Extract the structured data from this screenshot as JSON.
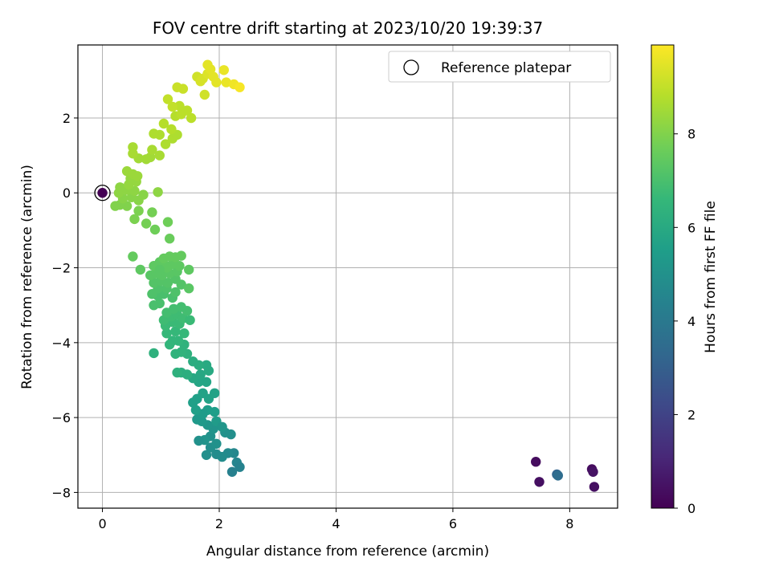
{
  "chart_data": {
    "type": "scatter",
    "title": "FOV centre drift starting at 2023/10/20 19:39:37",
    "xlabel": "Angular distance from reference (arcmin)",
    "ylabel": "Rotation from reference (arcmin)",
    "xlim": [
      -0.42,
      8.82
    ],
    "ylim": [
      -8.42,
      3.95
    ],
    "xticks": [
      0,
      2,
      4,
      6,
      8
    ],
    "yticks": [
      -8,
      -6,
      -4,
      -2,
      0,
      2
    ],
    "grid": true,
    "legend": {
      "position": "top-right",
      "entries": [
        "Reference platepar"
      ]
    },
    "colorbar": {
      "label": "Hours from first FF file",
      "colormap": "viridis",
      "range": [
        0,
        9.9
      ],
      "ticks": [
        0,
        2,
        4,
        6,
        8
      ]
    },
    "reference_point": {
      "x": 0,
      "y": 0
    },
    "points": [
      {
        "x": 7.42,
        "y": -7.18,
        "c": 0.3
      },
      {
        "x": 7.48,
        "y": -7.72,
        "c": 0.4
      },
      {
        "x": 7.78,
        "y": -7.52,
        "c": 3.2
      },
      {
        "x": 7.8,
        "y": -7.55,
        "c": 3.5
      },
      {
        "x": 8.38,
        "y": -7.38,
        "c": 0.3
      },
      {
        "x": 8.4,
        "y": -7.45,
        "c": 0.5
      },
      {
        "x": 8.42,
        "y": -7.85,
        "c": 0.4
      },
      {
        "x": 2.22,
        "y": -7.45,
        "c": 4.3
      },
      {
        "x": 2.3,
        "y": -7.2,
        "c": 4.5
      },
      {
        "x": 2.35,
        "y": -7.32,
        "c": 4.4
      },
      {
        "x": 2.25,
        "y": -6.95,
        "c": 4.6
      },
      {
        "x": 2.15,
        "y": -6.95,
        "c": 4.7
      },
      {
        "x": 2.05,
        "y": -7.05,
        "c": 4.8
      },
      {
        "x": 1.95,
        "y": -6.98,
        "c": 4.8
      },
      {
        "x": 1.85,
        "y": -6.8,
        "c": 4.9
      },
      {
        "x": 1.78,
        "y": -7.0,
        "c": 4.9
      },
      {
        "x": 1.95,
        "y": -6.7,
        "c": 5.0
      },
      {
        "x": 1.85,
        "y": -6.5,
        "c": 5.0
      },
      {
        "x": 1.75,
        "y": -6.6,
        "c": 5.1
      },
      {
        "x": 1.65,
        "y": -6.62,
        "c": 5.0
      },
      {
        "x": 2.2,
        "y": -6.45,
        "c": 4.9
      },
      {
        "x": 2.1,
        "y": -6.4,
        "c": 5.0
      },
      {
        "x": 1.9,
        "y": -6.3,
        "c": 5.1
      },
      {
        "x": 1.8,
        "y": -6.2,
        "c": 5.2
      },
      {
        "x": 1.7,
        "y": -6.1,
        "c": 5.3
      },
      {
        "x": 1.62,
        "y": -6.05,
        "c": 5.3
      },
      {
        "x": 1.95,
        "y": -6.1,
        "c": 5.4
      },
      {
        "x": 2.05,
        "y": -6.25,
        "c": 5.2
      },
      {
        "x": 1.92,
        "y": -5.85,
        "c": 5.5
      },
      {
        "x": 1.8,
        "y": -5.8,
        "c": 5.5
      },
      {
        "x": 1.72,
        "y": -5.9,
        "c": 5.4
      },
      {
        "x": 1.6,
        "y": -5.8,
        "c": 5.6
      },
      {
        "x": 1.55,
        "y": -5.6,
        "c": 5.6
      },
      {
        "x": 1.62,
        "y": -5.5,
        "c": 5.6
      },
      {
        "x": 1.72,
        "y": -5.35,
        "c": 5.7
      },
      {
        "x": 1.82,
        "y": -5.5,
        "c": 5.7
      },
      {
        "x": 1.92,
        "y": -5.35,
        "c": 5.7
      },
      {
        "x": 1.78,
        "y": -5.05,
        "c": 5.8
      },
      {
        "x": 1.65,
        "y": -5.05,
        "c": 5.8
      },
      {
        "x": 1.55,
        "y": -4.95,
        "c": 5.9
      },
      {
        "x": 1.68,
        "y": -4.85,
        "c": 5.9
      },
      {
        "x": 1.82,
        "y": -4.75,
        "c": 6.0
      },
      {
        "x": 1.78,
        "y": -4.6,
        "c": 6.0
      },
      {
        "x": 1.65,
        "y": -4.6,
        "c": 6.1
      },
      {
        "x": 1.55,
        "y": -4.5,
        "c": 6.1
      },
      {
        "x": 1.45,
        "y": -4.85,
        "c": 6.2
      },
      {
        "x": 1.35,
        "y": -4.8,
        "c": 6.2
      },
      {
        "x": 1.28,
        "y": -4.8,
        "c": 6.3
      },
      {
        "x": 1.45,
        "y": -4.3,
        "c": 6.3
      },
      {
        "x": 1.35,
        "y": -4.25,
        "c": 6.4
      },
      {
        "x": 1.25,
        "y": -4.3,
        "c": 6.4
      },
      {
        "x": 1.4,
        "y": -4.05,
        "c": 6.4
      },
      {
        "x": 1.3,
        "y": -3.95,
        "c": 6.5
      },
      {
        "x": 1.2,
        "y": -3.95,
        "c": 6.5
      },
      {
        "x": 1.15,
        "y": -4.05,
        "c": 6.5
      },
      {
        "x": 1.1,
        "y": -3.75,
        "c": 6.6
      },
      {
        "x": 1.25,
        "y": -3.7,
        "c": 6.6
      },
      {
        "x": 1.4,
        "y": -3.75,
        "c": 6.6
      },
      {
        "x": 1.32,
        "y": -3.5,
        "c": 6.7
      },
      {
        "x": 1.2,
        "y": -3.45,
        "c": 6.7
      },
      {
        "x": 1.08,
        "y": -3.55,
        "c": 6.7
      },
      {
        "x": 1.05,
        "y": -3.4,
        "c": 6.8
      },
      {
        "x": 1.18,
        "y": -3.3,
        "c": 6.8
      },
      {
        "x": 1.28,
        "y": -3.25,
        "c": 6.8
      },
      {
        "x": 1.38,
        "y": -3.35,
        "c": 6.8
      },
      {
        "x": 1.5,
        "y": -3.4,
        "c": 6.7
      },
      {
        "x": 1.45,
        "y": -3.15,
        "c": 6.9
      },
      {
        "x": 1.35,
        "y": -3.05,
        "c": 6.9
      },
      {
        "x": 1.22,
        "y": -3.1,
        "c": 6.9
      },
      {
        "x": 1.1,
        "y": -3.2,
        "c": 6.9
      },
      {
        "x": 0.98,
        "y": -2.95,
        "c": 7.0
      },
      {
        "x": 0.88,
        "y": -3.0,
        "c": 7.0
      },
      {
        "x": 0.95,
        "y": -2.75,
        "c": 7.0
      },
      {
        "x": 1.05,
        "y": -2.7,
        "c": 7.0
      },
      {
        "x": 1.2,
        "y": -2.8,
        "c": 7.0
      },
      {
        "x": 1.25,
        "y": -2.65,
        "c": 7.1
      },
      {
        "x": 1.1,
        "y": -2.55,
        "c": 7.1
      },
      {
        "x": 0.95,
        "y": -2.55,
        "c": 7.1
      },
      {
        "x": 0.85,
        "y": -2.7,
        "c": 7.1
      },
      {
        "x": 0.88,
        "y": -2.4,
        "c": 7.2
      },
      {
        "x": 1.0,
        "y": -2.35,
        "c": 7.2
      },
      {
        "x": 1.12,
        "y": -2.4,
        "c": 7.2
      },
      {
        "x": 1.25,
        "y": -2.3,
        "c": 7.2
      },
      {
        "x": 1.35,
        "y": -2.45,
        "c": 7.2
      },
      {
        "x": 1.48,
        "y": -2.55,
        "c": 7.3
      },
      {
        "x": 0.82,
        "y": -2.2,
        "c": 7.3
      },
      {
        "x": 0.92,
        "y": -2.15,
        "c": 7.3
      },
      {
        "x": 1.02,
        "y": -2.2,
        "c": 7.3
      },
      {
        "x": 1.15,
        "y": -2.15,
        "c": 7.3
      },
      {
        "x": 1.28,
        "y": -2.1,
        "c": 7.3
      },
      {
        "x": 1.32,
        "y": -1.95,
        "c": 7.4
      },
      {
        "x": 1.2,
        "y": -1.9,
        "c": 7.4
      },
      {
        "x": 1.08,
        "y": -1.95,
        "c": 7.4
      },
      {
        "x": 0.98,
        "y": -1.85,
        "c": 7.4
      },
      {
        "x": 0.88,
        "y": -1.95,
        "c": 7.4
      },
      {
        "x": 1.05,
        "y": -1.75,
        "c": 7.5
      },
      {
        "x": 1.15,
        "y": -1.7,
        "c": 7.5
      },
      {
        "x": 1.25,
        "y": -1.72,
        "c": 7.5
      },
      {
        "x": 1.35,
        "y": -1.68,
        "c": 7.5
      },
      {
        "x": 1.48,
        "y": -2.05,
        "c": 7.4
      },
      {
        "x": 1.1,
        "y": -2.0,
        "c": 7.4
      },
      {
        "x": 0.98,
        "y": -2.05,
        "c": 7.3
      },
      {
        "x": 0.52,
        "y": -1.7,
        "c": 7.5
      },
      {
        "x": 0.65,
        "y": -2.05,
        "c": 7.4
      },
      {
        "x": 0.88,
        "y": -4.28,
        "c": 6.3
      },
      {
        "x": 1.15,
        "y": -1.22,
        "c": 7.6
      },
      {
        "x": 1.12,
        "y": -0.78,
        "c": 7.7
      },
      {
        "x": 0.9,
        "y": -0.98,
        "c": 7.7
      },
      {
        "x": 0.75,
        "y": -0.82,
        "c": 7.8
      },
      {
        "x": 0.85,
        "y": -0.52,
        "c": 7.8
      },
      {
        "x": 0.62,
        "y": -0.48,
        "c": 7.9
      },
      {
        "x": 0.55,
        "y": -0.7,
        "c": 7.9
      },
      {
        "x": 0.42,
        "y": -0.35,
        "c": 8.0
      },
      {
        "x": 0.3,
        "y": -0.32,
        "c": 8.0
      },
      {
        "x": 0.22,
        "y": -0.35,
        "c": 8.0
      },
      {
        "x": 0.35,
        "y": -0.15,
        "c": 8.1
      },
      {
        "x": 0.5,
        "y": -0.12,
        "c": 8.1
      },
      {
        "x": 0.62,
        "y": -0.2,
        "c": 8.1
      },
      {
        "x": 0.7,
        "y": -0.05,
        "c": 8.1
      },
      {
        "x": 0.55,
        "y": 0.05,
        "c": 8.2
      },
      {
        "x": 0.42,
        "y": 0.08,
        "c": 8.2
      },
      {
        "x": 0.28,
        "y": 0.0,
        "c": 8.2
      },
      {
        "x": 0.3,
        "y": 0.15,
        "c": 8.2
      },
      {
        "x": 0.45,
        "y": 0.22,
        "c": 8.3
      },
      {
        "x": 0.58,
        "y": 0.3,
        "c": 8.3
      },
      {
        "x": 0.95,
        "y": 0.02,
        "c": 8.2
      },
      {
        "x": 0.48,
        "y": 0.38,
        "c": 8.3
      },
      {
        "x": 0.42,
        "y": 0.58,
        "c": 8.4
      },
      {
        "x": 0.52,
        "y": 0.5,
        "c": 8.4
      },
      {
        "x": 0.6,
        "y": 0.45,
        "c": 8.4
      },
      {
        "x": 0.75,
        "y": 0.9,
        "c": 8.5
      },
      {
        "x": 0.82,
        "y": 0.95,
        "c": 8.5
      },
      {
        "x": 0.62,
        "y": 0.92,
        "c": 8.5
      },
      {
        "x": 0.52,
        "y": 1.05,
        "c": 8.6
      },
      {
        "x": 0.52,
        "y": 1.22,
        "c": 8.6
      },
      {
        "x": 0.85,
        "y": 1.15,
        "c": 8.6
      },
      {
        "x": 0.98,
        "y": 1.0,
        "c": 8.6
      },
      {
        "x": 1.08,
        "y": 1.3,
        "c": 8.7
      },
      {
        "x": 1.2,
        "y": 1.45,
        "c": 8.7
      },
      {
        "x": 1.28,
        "y": 1.55,
        "c": 8.7
      },
      {
        "x": 0.98,
        "y": 1.55,
        "c": 8.7
      },
      {
        "x": 0.88,
        "y": 1.58,
        "c": 8.7
      },
      {
        "x": 1.05,
        "y": 1.85,
        "c": 8.8
      },
      {
        "x": 1.18,
        "y": 1.7,
        "c": 8.8
      },
      {
        "x": 1.25,
        "y": 2.05,
        "c": 8.8
      },
      {
        "x": 1.35,
        "y": 2.1,
        "c": 8.9
      },
      {
        "x": 1.45,
        "y": 2.2,
        "c": 8.9
      },
      {
        "x": 1.52,
        "y": 2.0,
        "c": 8.9
      },
      {
        "x": 1.32,
        "y": 2.32,
        "c": 8.9
      },
      {
        "x": 1.2,
        "y": 2.3,
        "c": 9.0
      },
      {
        "x": 1.12,
        "y": 2.5,
        "c": 9.0
      },
      {
        "x": 1.28,
        "y": 2.82,
        "c": 9.1
      },
      {
        "x": 1.38,
        "y": 2.78,
        "c": 9.1
      },
      {
        "x": 1.62,
        "y": 3.1,
        "c": 9.2
      },
      {
        "x": 1.72,
        "y": 3.05,
        "c": 9.3
      },
      {
        "x": 1.68,
        "y": 2.98,
        "c": 9.3
      },
      {
        "x": 1.8,
        "y": 3.18,
        "c": 9.4
      },
      {
        "x": 1.85,
        "y": 3.3,
        "c": 9.5
      },
      {
        "x": 1.8,
        "y": 3.42,
        "c": 9.5
      },
      {
        "x": 1.9,
        "y": 3.1,
        "c": 9.5
      },
      {
        "x": 1.95,
        "y": 2.95,
        "c": 9.5
      },
      {
        "x": 1.75,
        "y": 2.62,
        "c": 9.2
      },
      {
        "x": 2.08,
        "y": 3.28,
        "c": 9.6
      },
      {
        "x": 2.12,
        "y": 2.95,
        "c": 9.6
      },
      {
        "x": 2.25,
        "y": 2.9,
        "c": 9.7
      },
      {
        "x": 2.35,
        "y": 2.82,
        "c": 9.8
      }
    ]
  }
}
